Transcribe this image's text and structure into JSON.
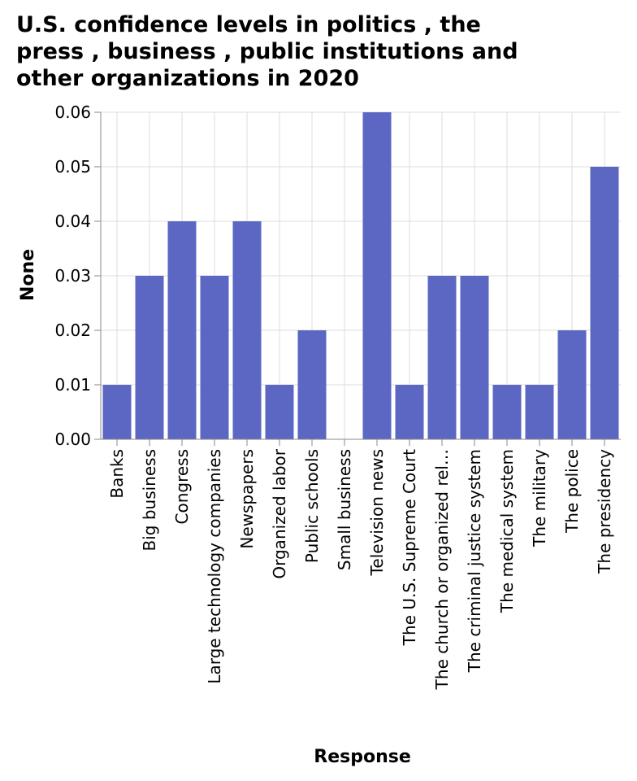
{
  "chart_data": {
    "type": "bar",
    "title_lines": [
      "U.S. confidence levels in politics , the",
      "press , business , public institutions and",
      "other organizations in 2020"
    ],
    "xlabel": "Response",
    "ylabel": "None",
    "categories": [
      "Banks",
      "Big business",
      "Congress",
      "Large technology companies",
      "Newspapers",
      "Organized labor",
      "Public schools",
      "Small business",
      "Television news",
      "The U.S. Supreme Court",
      "The church or organized rel…",
      "The criminal justice system",
      "The medical system",
      "The military",
      "The police",
      "The presidency"
    ],
    "values": [
      0.01,
      0.03,
      0.04,
      0.03,
      0.04,
      0.01,
      0.02,
      0.0,
      0.06,
      0.01,
      0.03,
      0.03,
      0.01,
      0.01,
      0.02,
      0.05
    ],
    "ylim": [
      0,
      0.06
    ],
    "yticks": [
      "0.00",
      "0.01",
      "0.02",
      "0.03",
      "0.04",
      "0.05",
      "0.06"
    ],
    "grid": true,
    "bar_color": "#5b67c2",
    "grid_color": "#dddddd"
  }
}
